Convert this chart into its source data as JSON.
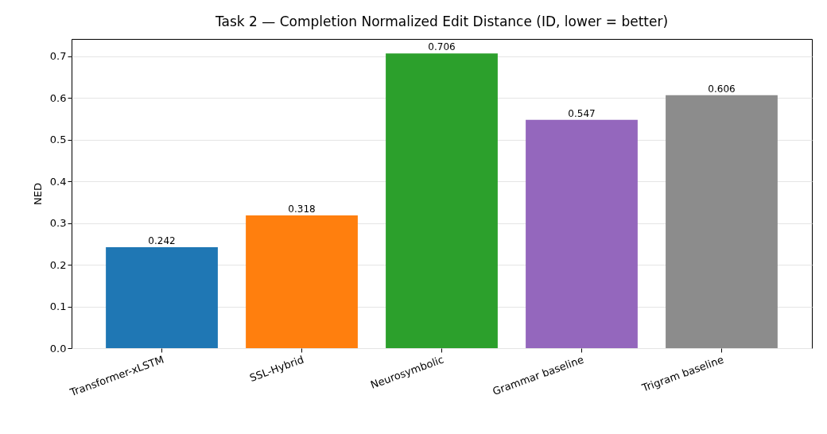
{
  "chart_data": {
    "type": "bar",
    "title": "Task 2 — Completion Normalized Edit Distance (ID, lower = better)",
    "ylabel": "NED",
    "categories": [
      "Transformer-xLSTM",
      "SSL-Hybrid",
      "Neurosymbolic",
      "Grammar baseline",
      "Trigram baseline"
    ],
    "values": [
      0.242,
      0.318,
      0.706,
      0.547,
      0.606
    ],
    "colors": [
      "#1f77b4",
      "#ff7f0e",
      "#2ca02c",
      "#9467bd",
      "#8c8c8c"
    ],
    "ylim": [
      0,
      0.741
    ],
    "yticks": [
      {
        "value": 0,
        "label": "0.0"
      },
      0.1,
      0.2,
      0.3,
      0.4,
      0.5,
      0.6,
      0.7
    ],
    "grid": "y",
    "data_labels": true
  }
}
